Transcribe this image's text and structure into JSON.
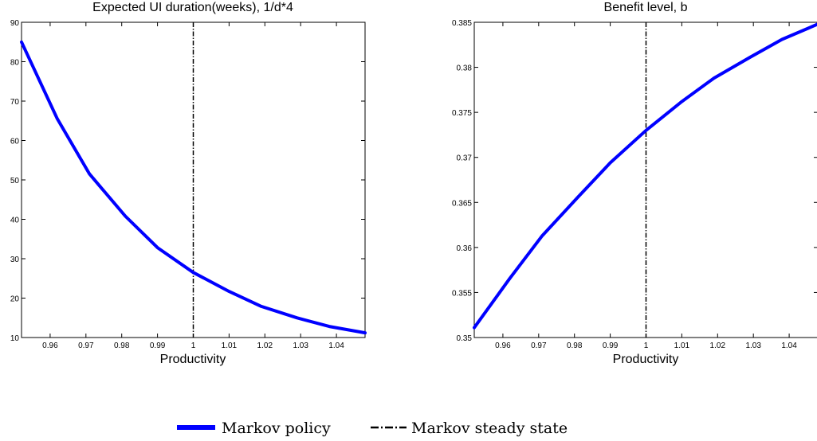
{
  "chart_data": [
    {
      "type": "line",
      "title": "Expected UI duration(weeks), 1/d*4",
      "xlabel": "Productivity",
      "ylabel": "",
      "xlim": [
        0.952,
        1.048
      ],
      "ylim": [
        10,
        90
      ],
      "xticks": [
        0.96,
        0.97,
        0.98,
        0.99,
        1,
        1.01,
        1.02,
        1.03,
        1.04
      ],
      "xtick_labels": [
        "0.96",
        "0.97",
        "0.98",
        "0.99",
        "1",
        "1.01",
        "1.02",
        "1.03",
        "1.04"
      ],
      "yticks": [
        10,
        20,
        30,
        40,
        50,
        60,
        70,
        80,
        90
      ],
      "ytick_labels": [
        "10",
        "20",
        "30",
        "40",
        "50",
        "60",
        "70",
        "80",
        "90"
      ],
      "grid": false,
      "series": [
        {
          "name": "Markov policy",
          "color": "#0000ff",
          "x": [
            0.952,
            0.962,
            0.971,
            0.981,
            0.99,
            1.0,
            1.01,
            1.019,
            1.029,
            1.038,
            1.048
          ],
          "y": [
            85.0,
            65.5,
            51.5,
            40.8,
            32.8,
            26.5,
            21.7,
            17.9,
            15.0,
            12.8,
            11.2
          ]
        }
      ],
      "vline": {
        "name": "Markov steady state",
        "x": 1.0,
        "color": "#000000"
      }
    },
    {
      "type": "line",
      "title": "Benefit level, b",
      "xlabel": "Productivity",
      "ylabel": "",
      "xlim": [
        0.952,
        1.048
      ],
      "ylim": [
        0.35,
        0.385
      ],
      "xticks": [
        0.96,
        0.97,
        0.98,
        0.99,
        1,
        1.01,
        1.02,
        1.03,
        1.04
      ],
      "xtick_labels": [
        "0.96",
        "0.97",
        "0.98",
        "0.99",
        "1",
        "1.01",
        "1.02",
        "1.03",
        "1.04"
      ],
      "yticks": [
        0.35,
        0.355,
        0.36,
        0.365,
        0.37,
        0.375,
        0.38,
        0.385
      ],
      "ytick_labels": [
        "0.35",
        "0.355",
        "0.36",
        "0.365",
        "0.37",
        "0.375",
        "0.38",
        "0.385"
      ],
      "grid": false,
      "series": [
        {
          "name": "Markov policy",
          "color": "#0000ff",
          "x": [
            0.952,
            0.962,
            0.971,
            0.981,
            0.99,
            1.0,
            1.01,
            1.019,
            1.029,
            1.038,
            1.048
          ],
          "y": [
            0.3511,
            0.3566,
            0.3613,
            0.3656,
            0.3694,
            0.373,
            0.3762,
            0.3788,
            0.3811,
            0.3831,
            0.3848
          ]
        }
      ],
      "vline": {
        "name": "Markov steady state",
        "x": 1.0,
        "color": "#000000"
      }
    }
  ],
  "legend": {
    "placement": "bottom-center",
    "items": [
      {
        "label": "Markov policy",
        "style": "solid",
        "color": "#0000ff"
      },
      {
        "label": "Markov steady state",
        "style": "dash-dot",
        "color": "#000000"
      }
    ]
  }
}
